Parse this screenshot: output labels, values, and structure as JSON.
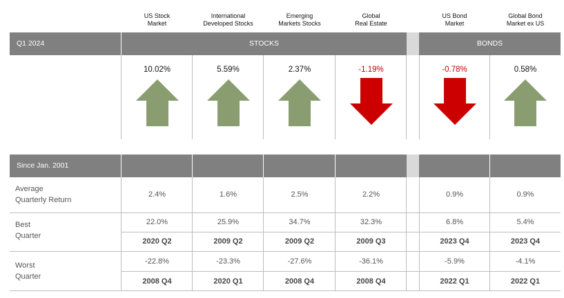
{
  "columns": [
    {
      "label_line1": "US Stock",
      "label_line2": "Market",
      "q1_return": "10.02%",
      "direction": "up",
      "avg": "2.4%",
      "best": "22.0%",
      "best_q": "2020 Q2",
      "worst": "-22.8%",
      "worst_q": "2008 Q4"
    },
    {
      "label_line1": "International",
      "label_line2": "Developed Stocks",
      "q1_return": "5.59%",
      "direction": "up",
      "avg": "1.6%",
      "best": "25.9%",
      "best_q": "2009 Q2",
      "worst": "-23.3%",
      "worst_q": "2020 Q1"
    },
    {
      "label_line1": "Emerging",
      "label_line2": "Markets Stocks",
      "q1_return": "2.37%",
      "direction": "up",
      "avg": "2.5%",
      "best": "34.7%",
      "best_q": "2009 Q2",
      "worst": "-27.6%",
      "worst_q": "2008 Q4"
    },
    {
      "label_line1": "Global",
      "label_line2": "Real Estate",
      "q1_return": "-1.19%",
      "direction": "down",
      "avg": "2.2%",
      "best": "32.3%",
      "best_q": "2009 Q3",
      "worst": "-36.1%",
      "worst_q": "2008 Q4"
    },
    {
      "label_line1": "US Bond",
      "label_line2": "Market",
      "q1_return": "-0.78%",
      "direction": "down",
      "avg": "0.9%",
      "best": "6.8%",
      "best_q": "2023 Q4",
      "worst": "-5.9%",
      "worst_q": "2022 Q1"
    },
    {
      "label_line1": "Global Bond",
      "label_line2": "Market ex US",
      "q1_return": "0.58%",
      "direction": "up",
      "avg": "0.9%",
      "best": "5.4%",
      "best_q": "2023 Q4",
      "worst": "-4.1%",
      "worst_q": "2022 Q1"
    }
  ],
  "top_band": {
    "period": "Q1 2024",
    "stocks_label": "STOCKS",
    "bonds_label": "BONDS"
  },
  "bottom_band": {
    "since_label": "Since Jan. 2001"
  },
  "row_labels": {
    "avg_line1": "Average",
    "avg_line2": "Quarterly Return",
    "best_line1": "Best",
    "best_line2": "Quarter",
    "worst_line1": "Worst",
    "worst_line2": "Quarter"
  },
  "colors": {
    "up_arrow": "#8a9d71",
    "down_arrow": "#cc0000",
    "band": "#808080",
    "negative_text": "#c00000"
  }
}
